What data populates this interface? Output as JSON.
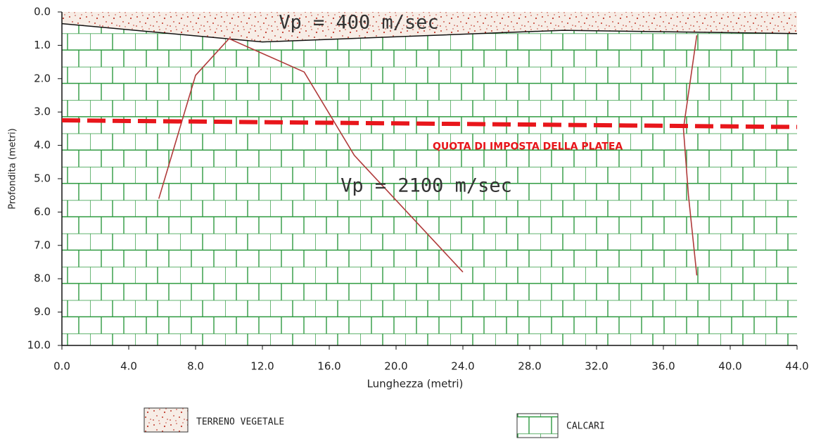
{
  "chart_data": {
    "type": "section",
    "xlabel": "Lunghezza (metri)",
    "ylabel": "Profondita (metri)",
    "xlim": [
      0,
      44
    ],
    "ylim": [
      0,
      10
    ],
    "y_inverted": true,
    "xticks": [
      {
        "value": 0,
        "label": "0.0"
      },
      {
        "value": 4,
        "label": "4.0"
      },
      {
        "value": 8,
        "label": "8.0"
      },
      {
        "value": 12,
        "label": "12.0"
      },
      {
        "value": 16,
        "label": "16.0"
      },
      {
        "value": 20,
        "label": "20.0"
      },
      {
        "value": 24,
        "label": "24.0"
      },
      {
        "value": 28,
        "label": "28.0"
      },
      {
        "value": 32,
        "label": "32.0"
      },
      {
        "value": 36,
        "label": "36.0"
      },
      {
        "value": 40,
        "label": "40.0"
      },
      {
        "value": 44,
        "label": "44.0"
      }
    ],
    "yticks": [
      {
        "value": 0,
        "label": "0.0"
      },
      {
        "value": 1,
        "label": "1.0"
      },
      {
        "value": 2,
        "label": "2.0"
      },
      {
        "value": 3,
        "label": "3.0"
      },
      {
        "value": 4,
        "label": "4.0"
      },
      {
        "value": 5,
        "label": "5.0"
      },
      {
        "value": 6,
        "label": "6.0"
      },
      {
        "value": 7,
        "label": "7.0"
      },
      {
        "value": 8,
        "label": "8.0"
      },
      {
        "value": 9,
        "label": "9.0"
      },
      {
        "value": 10,
        "label": "10.0"
      }
    ],
    "layers": [
      {
        "name": "TERRENO VEGETALE",
        "annotation": "Vp = 400 m/sec",
        "boundary_x": [
          0,
          12,
          30,
          44
        ],
        "boundary_y": [
          0.35,
          0.9,
          0.55,
          0.65
        ]
      },
      {
        "name": "CALCARI",
        "annotation": "Vp = 2100 m/sec"
      }
    ],
    "series": [
      {
        "color": "#b03a3a",
        "x": [
          5.8,
          8,
          10,
          14.5,
          17.5,
          24
        ],
        "y": [
          5.6,
          1.9,
          0.8,
          1.8,
          4.3,
          7.8
        ]
      },
      {
        "color": "#b03a3a",
        "x": [
          38,
          37.2,
          37.5,
          38
        ],
        "y": [
          0.7,
          3.5,
          5.5,
          7.9
        ]
      }
    ],
    "platea": {
      "label": "QUOTA DI IMPOSTA DELLA PLATEA",
      "color": "#e8161b",
      "x": [
        0,
        44
      ],
      "y": [
        3.25,
        3.45
      ]
    }
  }
}
